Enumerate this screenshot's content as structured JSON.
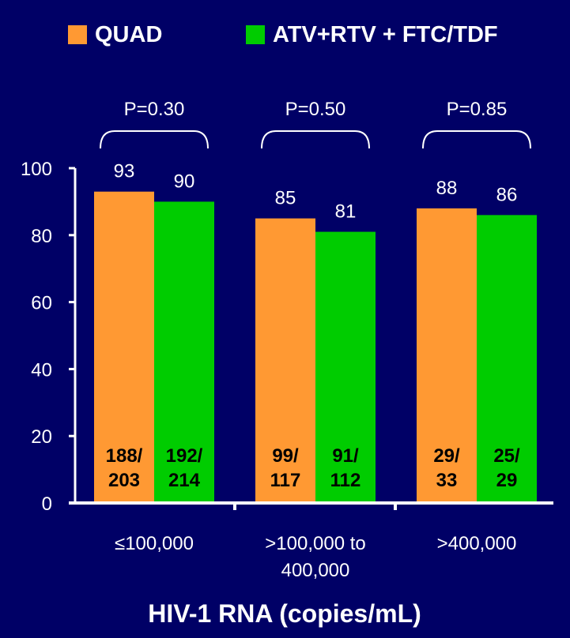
{
  "chart_data": {
    "type": "bar",
    "xlabel": "HIV-1 RNA (copies/mL)",
    "ylabel": "",
    "ylim": [
      0,
      100
    ],
    "yticks": [
      0,
      20,
      40,
      60,
      80,
      100
    ],
    "categories": [
      [
        "≤100,000"
      ],
      [
        ">100,000 to",
        "400,000"
      ],
      [
        ">400,000"
      ]
    ],
    "series": [
      {
        "name": "QUAD",
        "color": "#FF9933",
        "values": [
          93,
          85,
          88
        ],
        "counts": [
          [
            "188/",
            "203"
          ],
          [
            "99/",
            "117"
          ],
          [
            "29/",
            "33"
          ]
        ]
      },
      {
        "name": "ATV+RTV + FTC/TDF",
        "color": "#00CC00",
        "values": [
          90,
          81,
          86
        ],
        "counts": [
          [
            "192/",
            "214"
          ],
          [
            "91/",
            "112"
          ],
          [
            "25/",
            "29"
          ]
        ]
      }
    ],
    "p_values": [
      "P=0.30",
      "P=0.50",
      "P=0.85"
    ],
    "grid": false,
    "legend_position": "top"
  }
}
